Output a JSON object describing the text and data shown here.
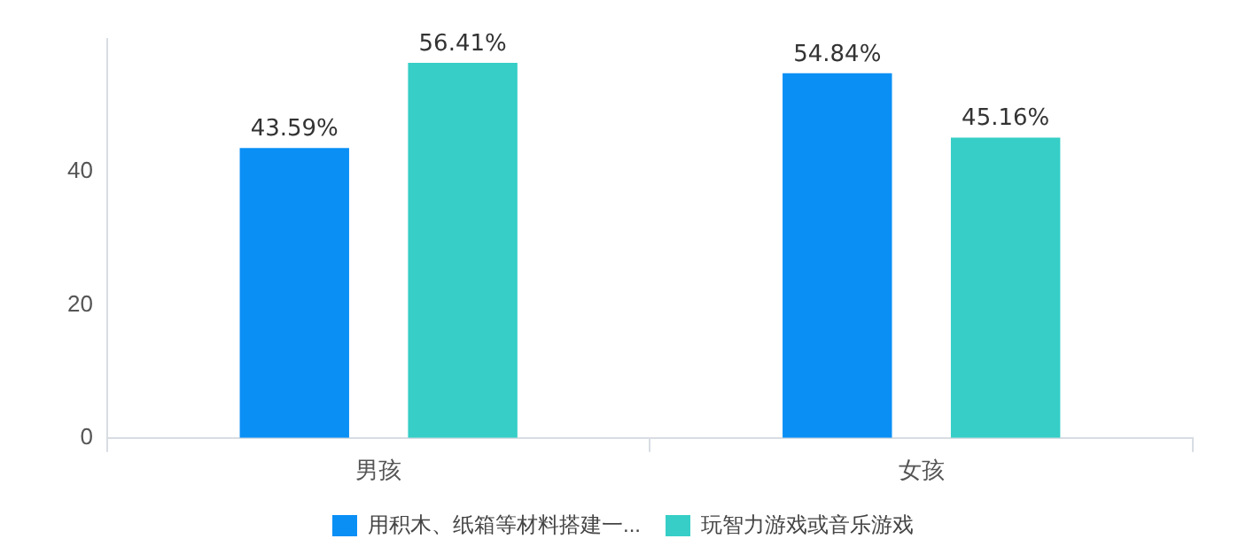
{
  "chart_data": {
    "type": "bar",
    "categories": [
      "男孩",
      "女孩"
    ],
    "series": [
      {
        "name": "用积木、纸箱等材料搭建一...",
        "color": "#0a8ff5",
        "values": [
          43.59,
          54.84
        ],
        "value_labels": [
          "43.59%",
          "54.84%"
        ]
      },
      {
        "name": "玩智力游戏或音乐游戏",
        "color": "#36cec6",
        "values": [
          56.41,
          45.16
        ],
        "value_labels": [
          "56.41%",
          "45.16%"
        ]
      }
    ],
    "ylim": [
      0,
      60
    ],
    "yticks": [
      0,
      20,
      40
    ],
    "grid": false,
    "legend": "bottom"
  }
}
